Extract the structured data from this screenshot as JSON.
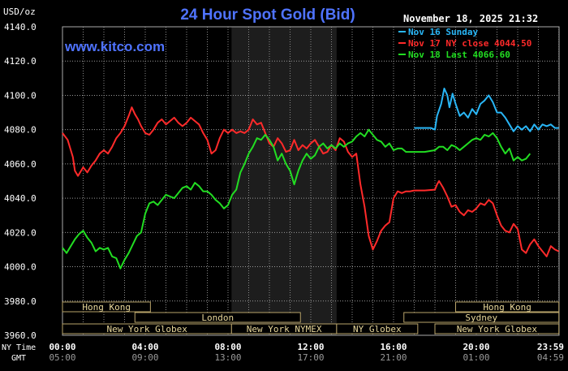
{
  "header": {
    "unit_label": "USD/oz",
    "title": "24 Hour Spot Gold (Bid)",
    "timestamp": "November 18, 2025 21:32",
    "watermark": "www.kitco.com"
  },
  "legend": [
    {
      "label": "Nov 16 Sunday",
      "color": "#29b6f6"
    },
    {
      "label": "Nov 17 NY close 4044.50",
      "color": "#ff2a2a"
    },
    {
      "label": "Nov 18 Last 4066.60",
      "color": "#22dd22"
    }
  ],
  "time_axis": {
    "ny_label": "NY Time",
    "gmt_label": "GMT",
    "ny_ticks": [
      "00:00",
      "04:00",
      "08:00",
      "12:00",
      "16:00",
      "20:00",
      "23:59"
    ],
    "gmt_ticks": [
      "05:00",
      "09:00",
      "13:00",
      "17:00",
      "21:00",
      "01:00",
      "04:59"
    ]
  },
  "sessions": [
    {
      "label": "Hong Kong",
      "start": 0,
      "end": 4.25,
      "row": 0
    },
    {
      "label": "London",
      "start": 3.5,
      "end": 11.5,
      "row": 1
    },
    {
      "label": "New York Globex",
      "start": 0,
      "end": 8.17,
      "row": 2
    },
    {
      "label": "New York NYMEX",
      "start": 8.17,
      "end": 13.25,
      "row": 2
    },
    {
      "label": "NY Globex",
      "start": 13.25,
      "end": 17.17,
      "row": 2
    },
    {
      "label": "Sydney",
      "start": 16.5,
      "end": 23.99,
      "row": 1
    },
    {
      "label": "Hong Kong",
      "start": 19.0,
      "end": 23.99,
      "row": 0
    },
    {
      "label": "New York Globex",
      "start": 18.0,
      "end": 23.99,
      "row": 2
    }
  ],
  "chart_data": {
    "type": "line",
    "title": "24 Hour Spot Gold (Bid)",
    "ylabel": "USD/oz",
    "xlabel": "NY Time",
    "xlim": [
      0,
      24
    ],
    "ylim": [
      3960,
      4140
    ],
    "yticks": [
      "3960.0",
      "3980.0",
      "4000.0",
      "4020.0",
      "4040.0",
      "4060.0",
      "4080.0",
      "4100.0",
      "4120.0",
      "4140.0"
    ],
    "grid": true,
    "shaded_session": {
      "label": "New York NYMEX",
      "start": 8.17,
      "end": 13.25
    },
    "series": [
      {
        "name": "Nov 16 Sunday",
        "color": "#29b6f6",
        "points": [
          [
            17.0,
            4081
          ],
          [
            17.8,
            4081
          ],
          [
            18.0,
            4080
          ],
          [
            18.1,
            4088
          ],
          [
            18.3,
            4095
          ],
          [
            18.45,
            4104
          ],
          [
            18.6,
            4100
          ],
          [
            18.7,
            4093
          ],
          [
            18.85,
            4101
          ],
          [
            19.0,
            4095
          ],
          [
            19.2,
            4088
          ],
          [
            19.4,
            4090
          ],
          [
            19.6,
            4087
          ],
          [
            19.8,
            4092
          ],
          [
            20.0,
            4089
          ],
          [
            20.2,
            4095
          ],
          [
            20.4,
            4097
          ],
          [
            20.6,
            4100
          ],
          [
            20.8,
            4096
          ],
          [
            21.0,
            4090
          ],
          [
            21.2,
            4090
          ],
          [
            21.4,
            4087
          ],
          [
            21.6,
            4083
          ],
          [
            21.8,
            4079
          ],
          [
            22.0,
            4082
          ],
          [
            22.2,
            4080
          ],
          [
            22.4,
            4082
          ],
          [
            22.6,
            4079
          ],
          [
            22.8,
            4083
          ],
          [
            23.0,
            4080
          ],
          [
            23.2,
            4083
          ],
          [
            23.4,
            4082
          ],
          [
            23.6,
            4083
          ],
          [
            23.8,
            4081
          ],
          [
            23.99,
            4081
          ]
        ]
      },
      {
        "name": "Nov 17 NY close 4044.50",
        "color": "#ff2a2a",
        "points": [
          [
            0.0,
            4078
          ],
          [
            0.25,
            4074
          ],
          [
            0.5,
            4064
          ],
          [
            0.6,
            4056
          ],
          [
            0.75,
            4053
          ],
          [
            1.0,
            4058
          ],
          [
            1.2,
            4055
          ],
          [
            1.4,
            4059
          ],
          [
            1.6,
            4062
          ],
          [
            1.8,
            4066
          ],
          [
            2.0,
            4068
          ],
          [
            2.2,
            4066
          ],
          [
            2.4,
            4070
          ],
          [
            2.6,
            4075
          ],
          [
            2.8,
            4078
          ],
          [
            3.0,
            4082
          ],
          [
            3.2,
            4088
          ],
          [
            3.35,
            4093
          ],
          [
            3.5,
            4089
          ],
          [
            3.65,
            4086
          ],
          [
            3.8,
            4082
          ],
          [
            4.0,
            4078
          ],
          [
            4.2,
            4077
          ],
          [
            4.4,
            4080
          ],
          [
            4.6,
            4084
          ],
          [
            4.8,
            4086
          ],
          [
            5.0,
            4083
          ],
          [
            5.2,
            4085
          ],
          [
            5.4,
            4087
          ],
          [
            5.6,
            4084
          ],
          [
            5.8,
            4082
          ],
          [
            6.0,
            4084
          ],
          [
            6.2,
            4087
          ],
          [
            6.4,
            4085
          ],
          [
            6.6,
            4083
          ],
          [
            6.8,
            4078
          ],
          [
            7.0,
            4074
          ],
          [
            7.2,
            4066
          ],
          [
            7.4,
            4068
          ],
          [
            7.6,
            4075
          ],
          [
            7.8,
            4080
          ],
          [
            8.0,
            4078
          ],
          [
            8.2,
            4080
          ],
          [
            8.4,
            4078
          ],
          [
            8.6,
            4079
          ],
          [
            8.8,
            4078
          ],
          [
            9.0,
            4080
          ],
          [
            9.2,
            4086
          ],
          [
            9.4,
            4083
          ],
          [
            9.6,
            4084
          ],
          [
            9.8,
            4078
          ],
          [
            10.0,
            4072
          ],
          [
            10.2,
            4070
          ],
          [
            10.4,
            4075
          ],
          [
            10.6,
            4072
          ],
          [
            10.8,
            4067
          ],
          [
            11.0,
            4068
          ],
          [
            11.2,
            4074
          ],
          [
            11.4,
            4068
          ],
          [
            11.6,
            4071
          ],
          [
            11.8,
            4069
          ],
          [
            12.0,
            4072
          ],
          [
            12.2,
            4074
          ],
          [
            12.4,
            4070
          ],
          [
            12.6,
            4066
          ],
          [
            12.8,
            4067
          ],
          [
            13.0,
            4071
          ],
          [
            13.2,
            4068
          ],
          [
            13.4,
            4075
          ],
          [
            13.6,
            4073
          ],
          [
            13.8,
            4067
          ],
          [
            14.0,
            4064
          ],
          [
            14.2,
            4066
          ],
          [
            14.4,
            4048
          ],
          [
            14.6,
            4035
          ],
          [
            14.8,
            4018
          ],
          [
            15.0,
            4010
          ],
          [
            15.2,
            4015
          ],
          [
            15.4,
            4021
          ],
          [
            15.6,
            4024
          ],
          [
            15.8,
            4026
          ],
          [
            16.0,
            4040
          ],
          [
            16.2,
            4044
          ],
          [
            16.4,
            4043
          ],
          [
            16.6,
            4044
          ],
          [
            16.8,
            4044
          ],
          [
            17.0,
            4044.5
          ],
          [
            17.5,
            4044.5
          ],
          [
            18.0,
            4045
          ],
          [
            18.1,
            4048
          ],
          [
            18.2,
            4050
          ],
          [
            18.4,
            4046
          ],
          [
            18.6,
            4041
          ],
          [
            18.8,
            4035
          ],
          [
            19.0,
            4036
          ],
          [
            19.2,
            4032
          ],
          [
            19.4,
            4030
          ],
          [
            19.6,
            4033
          ],
          [
            19.8,
            4032
          ],
          [
            20.0,
            4034
          ],
          [
            20.2,
            4037
          ],
          [
            20.4,
            4036
          ],
          [
            20.6,
            4039
          ],
          [
            20.8,
            4037
          ],
          [
            21.0,
            4030
          ],
          [
            21.2,
            4024
          ],
          [
            21.4,
            4021
          ],
          [
            21.6,
            4020
          ],
          [
            21.8,
            4025
          ],
          [
            22.0,
            4022
          ],
          [
            22.2,
            4010
          ],
          [
            22.4,
            4008
          ],
          [
            22.6,
            4013
          ],
          [
            22.8,
            4016
          ],
          [
            23.0,
            4012
          ],
          [
            23.2,
            4009
          ],
          [
            23.4,
            4006
          ],
          [
            23.6,
            4012
          ],
          [
            23.8,
            4010
          ],
          [
            23.99,
            4009
          ]
        ]
      },
      {
        "name": "Nov 18 Last 4066.60",
        "color": "#22dd22",
        "points": [
          [
            0.0,
            4011
          ],
          [
            0.2,
            4008
          ],
          [
            0.4,
            4012
          ],
          [
            0.6,
            4016
          ],
          [
            0.8,
            4019
          ],
          [
            1.0,
            4021
          ],
          [
            1.2,
            4017
          ],
          [
            1.4,
            4014
          ],
          [
            1.6,
            4009
          ],
          [
            1.8,
            4011
          ],
          [
            2.0,
            4010
          ],
          [
            2.2,
            4011
          ],
          [
            2.4,
            4006
          ],
          [
            2.6,
            4005
          ],
          [
            2.8,
            3999
          ],
          [
            3.0,
            4004
          ],
          [
            3.2,
            4008
          ],
          [
            3.4,
            4013
          ],
          [
            3.6,
            4018
          ],
          [
            3.8,
            4020
          ],
          [
            4.0,
            4031
          ],
          [
            4.2,
            4037
          ],
          [
            4.4,
            4038
          ],
          [
            4.6,
            4036
          ],
          [
            4.8,
            4039
          ],
          [
            5.0,
            4042
          ],
          [
            5.2,
            4041
          ],
          [
            5.4,
            4040
          ],
          [
            5.6,
            4043
          ],
          [
            5.8,
            4046
          ],
          [
            6.0,
            4047
          ],
          [
            6.2,
            4045
          ],
          [
            6.4,
            4049
          ],
          [
            6.6,
            4047
          ],
          [
            6.8,
            4044
          ],
          [
            7.0,
            4044
          ],
          [
            7.2,
            4042
          ],
          [
            7.4,
            4039
          ],
          [
            7.6,
            4037
          ],
          [
            7.8,
            4034
          ],
          [
            8.0,
            4036
          ],
          [
            8.2,
            4042
          ],
          [
            8.4,
            4045
          ],
          [
            8.6,
            4055
          ],
          [
            8.8,
            4060
          ],
          [
            9.0,
            4066
          ],
          [
            9.2,
            4070
          ],
          [
            9.4,
            4075
          ],
          [
            9.6,
            4074
          ],
          [
            9.8,
            4077
          ],
          [
            10.0,
            4074
          ],
          [
            10.2,
            4070
          ],
          [
            10.4,
            4062
          ],
          [
            10.6,
            4066
          ],
          [
            10.8,
            4060
          ],
          [
            11.0,
            4056
          ],
          [
            11.2,
            4048
          ],
          [
            11.4,
            4056
          ],
          [
            11.6,
            4062
          ],
          [
            11.8,
            4066
          ],
          [
            12.0,
            4063
          ],
          [
            12.2,
            4065
          ],
          [
            12.4,
            4070
          ],
          [
            12.6,
            4072
          ],
          [
            12.8,
            4069
          ],
          [
            13.0,
            4071
          ],
          [
            13.2,
            4069
          ],
          [
            13.4,
            4072
          ],
          [
            13.6,
            4070
          ],
          [
            13.8,
            4072
          ],
          [
            14.0,
            4073
          ],
          [
            14.2,
            4076
          ],
          [
            14.4,
            4078
          ],
          [
            14.6,
            4076
          ],
          [
            14.8,
            4080
          ],
          [
            15.0,
            4077
          ],
          [
            15.2,
            4074
          ],
          [
            15.4,
            4073
          ],
          [
            15.6,
            4070
          ],
          [
            15.8,
            4072
          ],
          [
            16.0,
            4068
          ],
          [
            16.2,
            4069
          ],
          [
            16.4,
            4069
          ],
          [
            16.6,
            4067
          ],
          [
            16.8,
            4067
          ],
          [
            17.0,
            4067
          ],
          [
            17.5,
            4067
          ],
          [
            18.0,
            4068
          ],
          [
            18.2,
            4070
          ],
          [
            18.4,
            4070
          ],
          [
            18.6,
            4068
          ],
          [
            18.8,
            4071
          ],
          [
            19.0,
            4070
          ],
          [
            19.2,
            4068
          ],
          [
            19.4,
            4070
          ],
          [
            19.6,
            4072
          ],
          [
            19.8,
            4074
          ],
          [
            20.0,
            4075
          ],
          [
            20.2,
            4074
          ],
          [
            20.4,
            4077
          ],
          [
            20.6,
            4076
          ],
          [
            20.8,
            4078
          ],
          [
            21.0,
            4075
          ],
          [
            21.2,
            4070
          ],
          [
            21.4,
            4066
          ],
          [
            21.6,
            4069
          ],
          [
            21.8,
            4062
          ],
          [
            22.0,
            4064
          ],
          [
            22.2,
            4062
          ],
          [
            22.4,
            4063
          ],
          [
            22.6,
            4066
          ]
        ]
      }
    ]
  }
}
